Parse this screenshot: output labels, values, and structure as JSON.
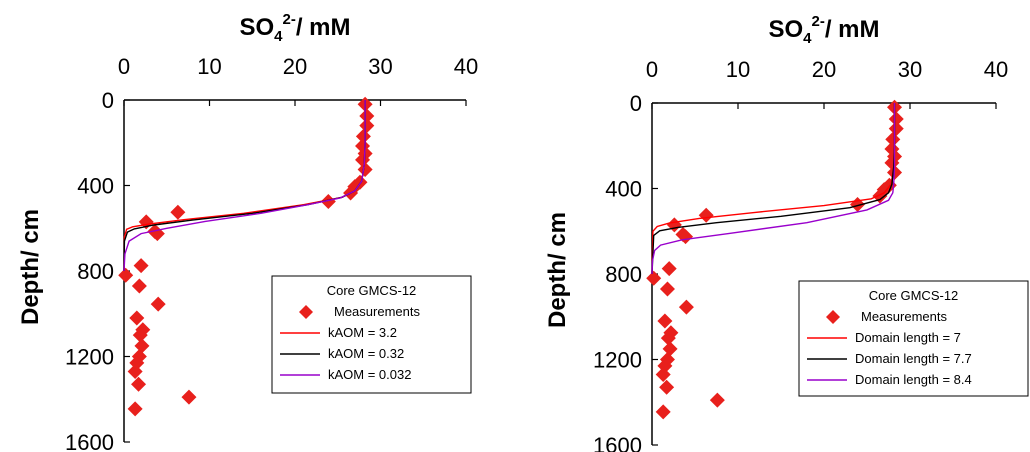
{
  "chart_data": [
    {
      "type": "line",
      "xlabel": "SO42-/ mM",
      "xlabel_parts": {
        "main": "SO",
        "sub": "4",
        "sup": "2-",
        "rest": "/ mM"
      },
      "ylabel": "Depth/ cm",
      "xlim": [
        0,
        40
      ],
      "ylim": [
        0,
        1600
      ],
      "y_inverted": true,
      "x_axis_position": "top",
      "xticks": [
        "0",
        "10",
        "20",
        "30",
        "40"
      ],
      "yticks": [
        "0",
        "400",
        "800",
        "1200",
        "1600"
      ],
      "grid": false,
      "legend": {
        "placement": "lower-right",
        "title": "Core GMCS-12",
        "entries": [
          "Measurements",
          "kAOM = 3.2",
          "kAOM = 0.32",
          "kAOM = 0.032"
        ]
      },
      "series": [
        {
          "name": "Measurements",
          "kind": "scatter",
          "color": "#e8201c",
          "points": [
            [
              28.2,
              20
            ],
            [
              28.4,
              75
            ],
            [
              28.4,
              120
            ],
            [
              28.0,
              170
            ],
            [
              27.9,
              215
            ],
            [
              28.2,
              250
            ],
            [
              27.9,
              280
            ],
            [
              28.2,
              325
            ],
            [
              27.6,
              385
            ],
            [
              27.0,
              405
            ],
            [
              26.5,
              435
            ],
            [
              23.9,
              475
            ],
            [
              6.3,
              525
            ],
            [
              2.6,
              570
            ],
            [
              3.6,
              615
            ],
            [
              3.9,
              625
            ],
            [
              2.0,
              775
            ],
            [
              0.2,
              820
            ],
            [
              1.8,
              870
            ],
            [
              4.0,
              955
            ],
            [
              1.5,
              1020
            ],
            [
              2.2,
              1075
            ],
            [
              1.9,
              1100
            ],
            [
              2.1,
              1150
            ],
            [
              1.8,
              1200
            ],
            [
              1.5,
              1230
            ],
            [
              1.3,
              1270
            ],
            [
              1.7,
              1330
            ],
            [
              7.6,
              1390
            ],
            [
              1.3,
              1445
            ]
          ]
        },
        {
          "name": "kAOM = 3.2",
          "kind": "line",
          "color": "#ff0000",
          "points": [
            [
              28.2,
              0
            ],
            [
              28.2,
              200
            ],
            [
              28.1,
              300
            ],
            [
              27.8,
              380
            ],
            [
              27.0,
              425
            ],
            [
              25.5,
              455
            ],
            [
              21.0,
              490
            ],
            [
              14.0,
              530
            ],
            [
              7.0,
              560
            ],
            [
              3.0,
              580
            ],
            [
              1.0,
              593
            ],
            [
              0.3,
              605
            ],
            [
              0.05,
              640
            ],
            [
              0,
              800
            ]
          ]
        },
        {
          "name": "kAOM = 0.32",
          "kind": "line",
          "color": "#000000",
          "points": [
            [
              28.2,
              0
            ],
            [
              28.2,
              200
            ],
            [
              28.1,
              300
            ],
            [
              27.8,
              380
            ],
            [
              27.0,
              425
            ],
            [
              25.5,
              455
            ],
            [
              21.5,
              490
            ],
            [
              15.0,
              530
            ],
            [
              8.0,
              562
            ],
            [
              3.5,
              585
            ],
            [
              1.2,
              603
            ],
            [
              0.4,
              618
            ],
            [
              0.05,
              660
            ],
            [
              0,
              800
            ]
          ]
        },
        {
          "name": "kAOM = 0.032",
          "kind": "line",
          "color": "#9900cc",
          "points": [
            [
              28.2,
              0
            ],
            [
              28.2,
              200
            ],
            [
              28.1,
              300
            ],
            [
              27.8,
              380
            ],
            [
              27.0,
              425
            ],
            [
              25.3,
              458
            ],
            [
              21.5,
              490
            ],
            [
              16.0,
              530
            ],
            [
              9.5,
              568
            ],
            [
              5.0,
              600
            ],
            [
              2.0,
              625
            ],
            [
              0.6,
              660
            ],
            [
              0.1,
              720
            ],
            [
              0,
              800
            ]
          ]
        }
      ]
    },
    {
      "type": "line",
      "xlabel": "SO42-/ mM",
      "xlabel_parts": {
        "main": "SO",
        "sub": "4",
        "sup": "2-",
        "rest": "/ mM"
      },
      "ylabel": "Depth/ cm",
      "xlim": [
        0,
        40
      ],
      "ylim": [
        0,
        1600
      ],
      "y_inverted": true,
      "x_axis_position": "top",
      "xticks": [
        "0",
        "10",
        "20",
        "30",
        "40"
      ],
      "yticks": [
        "0",
        "400",
        "800",
        "1200",
        "1600"
      ],
      "grid": false,
      "legend": {
        "placement": "lower-right",
        "title": "Core GMCS-12",
        "entries": [
          "Measurements",
          "Domain length = 7",
          "Domain length = 7.7",
          "Domain length = 8.4"
        ]
      },
      "series": [
        {
          "name": "Measurements",
          "kind": "scatter",
          "color": "#e8201c",
          "points": [
            [
              28.2,
              20
            ],
            [
              28.4,
              75
            ],
            [
              28.4,
              120
            ],
            [
              28.0,
              170
            ],
            [
              27.9,
              215
            ],
            [
              28.2,
              250
            ],
            [
              27.9,
              280
            ],
            [
              28.2,
              325
            ],
            [
              27.6,
              385
            ],
            [
              27.0,
              405
            ],
            [
              26.5,
              435
            ],
            [
              23.9,
              475
            ],
            [
              6.3,
              525
            ],
            [
              2.6,
              570
            ],
            [
              3.6,
              615
            ],
            [
              3.9,
              625
            ],
            [
              2.0,
              775
            ],
            [
              0.2,
              820
            ],
            [
              1.8,
              870
            ],
            [
              4.0,
              955
            ],
            [
              1.5,
              1020
            ],
            [
              2.2,
              1075
            ],
            [
              1.9,
              1100
            ],
            [
              2.1,
              1150
            ],
            [
              1.8,
              1200
            ],
            [
              1.5,
              1230
            ],
            [
              1.3,
              1270
            ],
            [
              1.7,
              1330
            ],
            [
              7.6,
              1390
            ],
            [
              1.3,
              1445
            ]
          ]
        },
        {
          "name": "Domain length = 7",
          "kind": "line",
          "color": "#ff0000",
          "points": [
            [
              28.2,
              0
            ],
            [
              28.2,
              200
            ],
            [
              28.1,
              300
            ],
            [
              27.8,
              380
            ],
            [
              27.0,
              420
            ],
            [
              25.5,
              448
            ],
            [
              20.0,
              480
            ],
            [
              12.0,
              512
            ],
            [
              5.5,
              540
            ],
            [
              2.0,
              562
            ],
            [
              0.6,
              578
            ],
            [
              0.1,
              600
            ],
            [
              0,
              800
            ]
          ]
        },
        {
          "name": "Domain length = 7.7",
          "kind": "line",
          "color": "#000000",
          "points": [
            [
              28.2,
              0
            ],
            [
              28.2,
              200
            ],
            [
              28.1,
              300
            ],
            [
              27.9,
              380
            ],
            [
              27.5,
              420
            ],
            [
              26.5,
              452
            ],
            [
              23.0,
              490
            ],
            [
              15.0,
              530
            ],
            [
              7.5,
              560
            ],
            [
              3.0,
              582
            ],
            [
              0.9,
              598
            ],
            [
              0.2,
              620
            ],
            [
              0,
              800
            ]
          ]
        },
        {
          "name": "Domain length = 8.4",
          "kind": "line",
          "color": "#9900cc",
          "points": [
            [
              28.2,
              0
            ],
            [
              28.2,
              200
            ],
            [
              28.2,
              300
            ],
            [
              28.1,
              380
            ],
            [
              28.0,
              420
            ],
            [
              27.5,
              455
            ],
            [
              25.0,
              500
            ],
            [
              18.0,
              560
            ],
            [
              9.0,
              610
            ],
            [
              3.5,
              640
            ],
            [
              1.0,
              665
            ],
            [
              0.3,
              690
            ],
            [
              0.05,
              740
            ],
            [
              0,
              800
            ]
          ]
        }
      ]
    }
  ]
}
